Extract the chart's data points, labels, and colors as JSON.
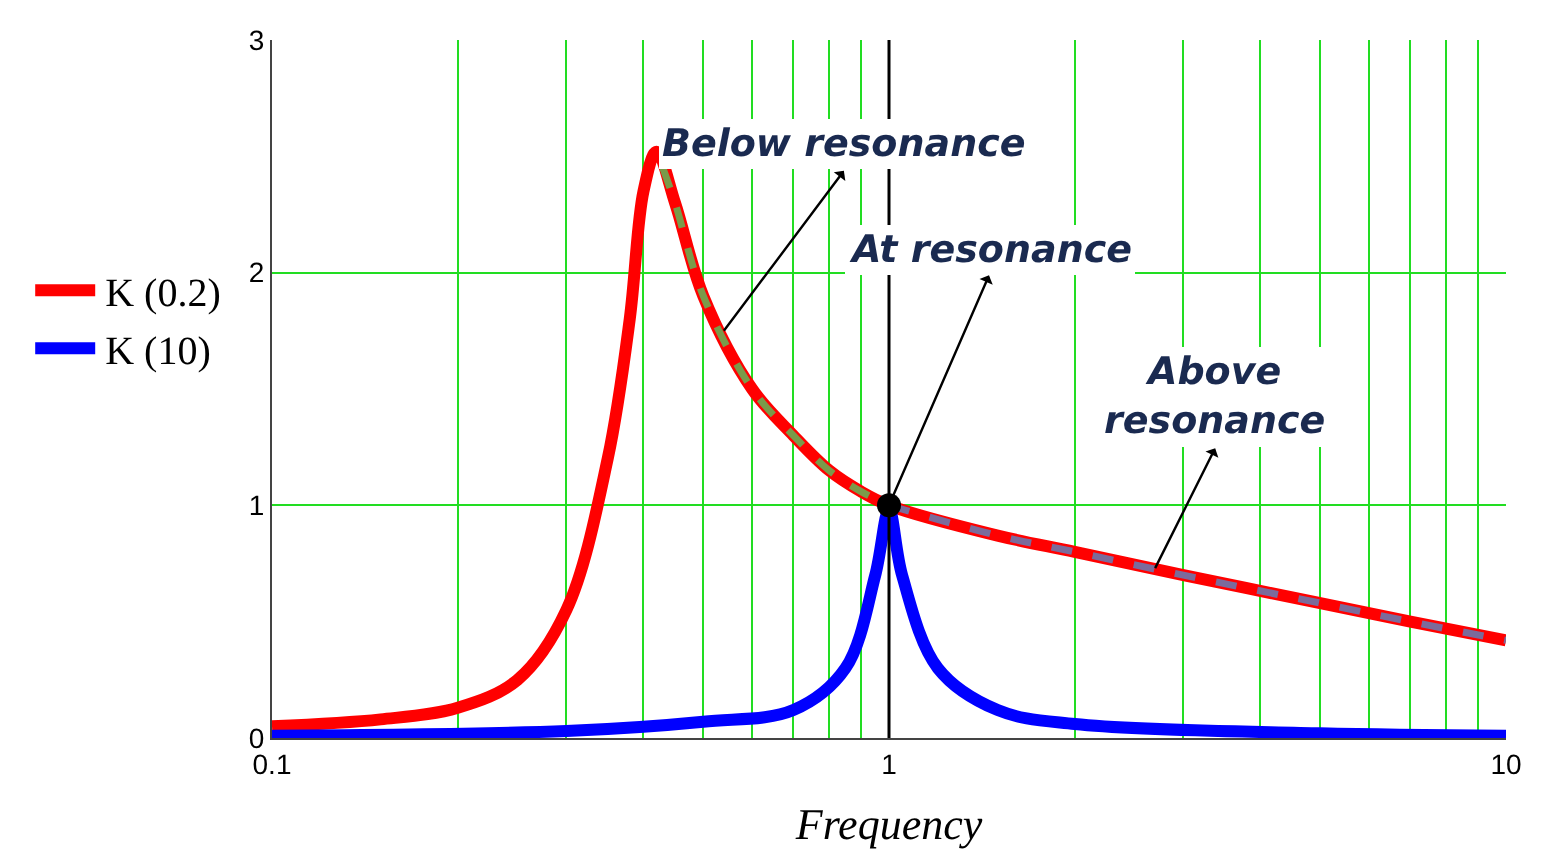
{
  "chart_data": {
    "type": "line",
    "xlabel": "Frequency",
    "log": "x",
    "xlim": [
      0.1,
      10
    ],
    "ylim": [
      0,
      3
    ],
    "xticks": [
      0.1,
      {
        "value": 0.2,
        "label": null
      },
      {
        "value": 0.3,
        "label": null
      },
      {
        "value": 0.4,
        "label": null
      },
      {
        "value": 0.5,
        "label": null
      },
      {
        "value": 0.6,
        "label": null
      },
      {
        "value": 0.7,
        "label": null
      },
      {
        "value": 0.8,
        "label": null
      },
      {
        "value": 0.9,
        "label": null
      },
      1,
      {
        "value": 2,
        "label": null
      },
      {
        "value": 3,
        "label": null
      },
      {
        "value": 4,
        "label": null
      },
      {
        "value": 5,
        "label": null
      },
      {
        "value": 6,
        "label": null
      },
      {
        "value": 7,
        "label": null
      },
      {
        "value": 8,
        "label": null
      },
      {
        "value": 9,
        "label": null
      },
      10
    ],
    "yticks": [
      0,
      1,
      2,
      3
    ],
    "grid": true,
    "legend": "left",
    "marker": "none",
    "line_style": "solid",
    "series": [
      {
        "name": "K (0.2)",
        "color": "#ff0000",
        "x": [
          0.1,
          0.15,
          0.2,
          0.25,
          0.3,
          0.35,
          0.38,
          0.4,
          0.42,
          0.45,
          0.5,
          0.6,
          0.7,
          0.8,
          0.9,
          1,
          1.5,
          2,
          3,
          5,
          7,
          10
        ],
        "values": [
          0.05,
          0.08,
          0.13,
          0.25,
          0.55,
          1.2,
          1.8,
          2.35,
          2.52,
          2.3,
          1.9,
          1.5,
          1.3,
          1.15,
          1.06,
          1.0,
          0.87,
          0.8,
          0.7,
          0.58,
          0.5,
          0.42
        ]
      },
      {
        "name": "K (10)",
        "color": "#0000ff",
        "x": [
          0.1,
          0.3,
          0.5,
          0.7,
          0.85,
          0.95,
          1,
          1.05,
          1.2,
          1.5,
          2,
          5,
          10
        ],
        "values": [
          0.01,
          0.03,
          0.07,
          0.12,
          0.3,
          0.7,
          0.98,
          0.7,
          0.3,
          0.12,
          0.06,
          0.02,
          0.01
        ]
      },
      {
        "color": "#7a9a4a",
        "line_style": "dashed",
        "x": [
          0.43,
          0.45,
          0.5,
          0.6,
          0.7,
          0.8,
          0.9,
          1
        ],
        "values": [
          2.45,
          2.3,
          1.9,
          1.5,
          1.3,
          1.15,
          1.06,
          1.0
        ]
      },
      {
        "color": "#7b6b9b",
        "line_style": "dashed",
        "x": [
          1,
          1.5,
          2,
          3,
          5,
          7,
          10
        ],
        "values": [
          1.0,
          0.87,
          0.8,
          0.7,
          0.58,
          0.5,
          0.42
        ]
      },
      {
        "type": "scatter",
        "marker": "circle",
        "color": "#000000",
        "x": [
          1
        ],
        "values": [
          1
        ]
      }
    ],
    "ref_lines": [
      {
        "axis": "x",
        "value": 1,
        "color": "#000000"
      }
    ],
    "annotations": [
      {
        "text": "Below resonance",
        "x": 0.54,
        "y": 1.75
      },
      {
        "text": "At resonance",
        "x": 1,
        "y": 1
      },
      {
        "text": "Above\nresonance",
        "x": 2.7,
        "y": 0.73
      }
    ]
  }
}
